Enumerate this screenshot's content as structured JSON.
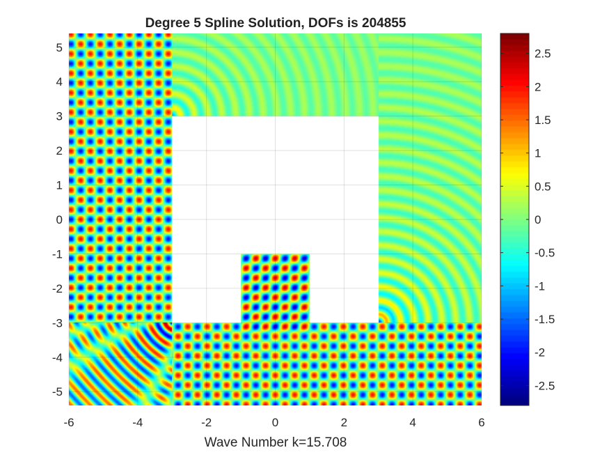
{
  "chart_data": {
    "type": "heatmap",
    "title": "Degree 5 Spline Solution, DOFs is 204855",
    "xlabel": "Wave Number k=15.708",
    "ylabel": "",
    "xlim": [
      -6,
      6
    ],
    "ylim": [
      -5.4,
      5.4
    ],
    "x_ticks": [
      -6,
      -4,
      -2,
      0,
      2,
      4,
      6
    ],
    "y_ticks": [
      -5,
      -4,
      -3,
      -2,
      -1,
      0,
      1,
      2,
      3,
      4,
      5
    ],
    "x_tick_labels": [
      "-6",
      "-4",
      "-2",
      "0",
      "2",
      "4",
      "6"
    ],
    "y_tick_labels": [
      "-5",
      "-4",
      "-3",
      "-2",
      "-1",
      "0",
      "1",
      "2",
      "3",
      "4",
      "5"
    ],
    "grid": true,
    "colormap": "jet",
    "clim": [
      -2.8,
      2.8
    ],
    "colorbar": {
      "placement": "right",
      "ticks": [
        -2.5,
        -2,
        -1.5,
        -1,
        -0.5,
        0,
        0.5,
        1,
        1.5,
        2,
        2.5
      ],
      "tick_labels": [
        "-2.5",
        "-2",
        "-1.5",
        "-1",
        "-0.5",
        "0",
        "0.5",
        "1",
        "1.5",
        "2",
        "2.5"
      ]
    },
    "obstacle": {
      "outer_x": [
        -3,
        3
      ],
      "outer_y": [
        -3,
        3
      ],
      "notch_x": [
        -1,
        1
      ],
      "notch_y": [
        -3,
        -1
      ]
    },
    "wave_number": 15.708
  }
}
